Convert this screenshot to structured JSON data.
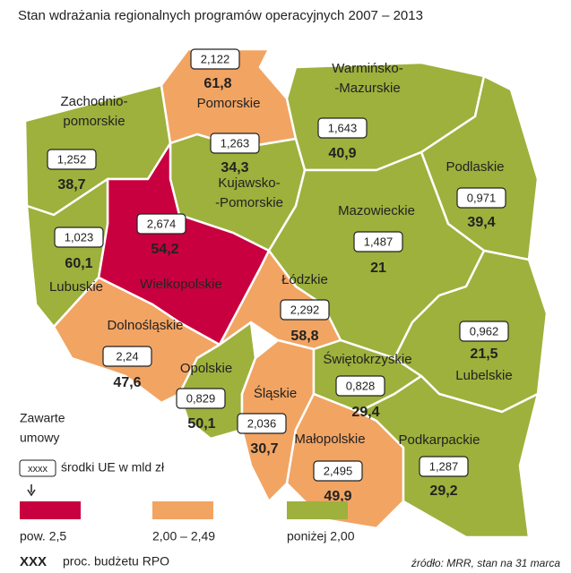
{
  "title": "Stan wdrażania regionalnych programów operacyjnych 2007 – 2013",
  "regions": [
    {
      "name": [
        "Zachodnio-",
        "pomorskie"
      ],
      "funds": "1,252",
      "share": "38,7",
      "color": "#9db13c"
    },
    {
      "name": [
        "Pomorskie"
      ],
      "funds": "2,122",
      "share": "61,8",
      "color": "#f2a463"
    },
    {
      "name": [
        "Warmińsko-",
        "-Mazurskie"
      ],
      "funds": "1,643",
      "share": "40,9",
      "color": "#9db13c"
    },
    {
      "name": [
        "Podlaskie"
      ],
      "funds": "0,971",
      "share": "39,4",
      "color": "#9db13c"
    },
    {
      "name": [
        "Kujawsko-",
        "-Pomorskie"
      ],
      "funds": "1,263",
      "share": "34,3",
      "color": "#9db13c"
    },
    {
      "name": [
        "Wielkopolskie"
      ],
      "funds": "2,674",
      "share": "54,2",
      "color": "#c8003f"
    },
    {
      "name": [
        "Lubuskie"
      ],
      "funds": "1,023",
      "share": "60,1",
      "color": "#9db13c"
    },
    {
      "name": [
        "Mazowieckie"
      ],
      "funds": "1,487",
      "share": "21",
      "color": "#9db13c"
    },
    {
      "name": [
        "Łódzkie"
      ],
      "funds": "2,292",
      "share": "58,8",
      "color": "#f2a463"
    },
    {
      "name": [
        "Dolnośląskie"
      ],
      "funds": "2,24",
      "share": "47,6",
      "color": "#f2a463"
    },
    {
      "name": [
        "Opolskie"
      ],
      "funds": "0,829",
      "share": "50,1",
      "color": "#9db13c"
    },
    {
      "name": [
        "Śląskie"
      ],
      "funds": "2,036",
      "share": "30,7",
      "color": "#f2a463"
    },
    {
      "name": [
        "Świętokrzyskie"
      ],
      "funds": "0,828",
      "share": "29,4",
      "color": "#9db13c"
    },
    {
      "name": [
        "Lubelskie"
      ],
      "funds": "0,962",
      "share": "21,5",
      "color": "#9db13c"
    },
    {
      "name": [
        "Małopolskie"
      ],
      "funds": "2,495",
      "share": "49,9",
      "color": "#f2a463"
    },
    {
      "name": [
        "Podkarpackie"
      ],
      "funds": "1,287",
      "share": "29,2",
      "color": "#9db13c"
    }
  ],
  "legend": {
    "heading": [
      "Zawarte",
      "umowy"
    ],
    "box_sample": "xxxx",
    "box_text": "środki UE w mld zł",
    "classes": [
      {
        "label": "pow. 2,5",
        "color": "#c8003f"
      },
      {
        "label": "2,00 – 2,49",
        "color": "#f2a463"
      },
      {
        "label": "poniżej 2,00",
        "color": "#9db13c"
      }
    ],
    "share_sample": "XXX",
    "share_text": "proc. budżetu RPO"
  },
  "source": "źródło: MRR, stan na 31 marca"
}
